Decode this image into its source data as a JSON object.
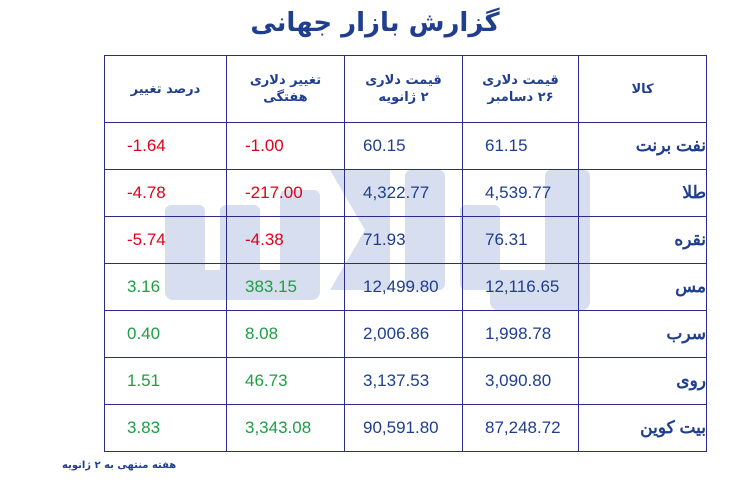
{
  "title": "گزارش بازار جهانی",
  "headers": {
    "commodity": "کالا",
    "price_dec26_line1": "قیمت دلاری",
    "price_dec26_line2": "۲۶ دسامبر",
    "price_jan2_line1": "قیمت دلاری",
    "price_jan2_line2": "۲ ژانویه",
    "weekly_change": "تغییر دلاری هفتگی",
    "percent_change": "درصد تغییر"
  },
  "rows": [
    {
      "name": "نفت برنت",
      "price_dec26": "61.15",
      "price_jan2": "60.15",
      "change": "-1.00",
      "pct": "-1.64"
    },
    {
      "name": "طلا",
      "price_dec26": "4,539.77",
      "price_jan2": "4,322.77",
      "change": "-217.00",
      "pct": "-4.78"
    },
    {
      "name": "نقره",
      "price_dec26": "76.31",
      "price_jan2": "71.93",
      "change": "-4.38",
      "pct": "-5.74"
    },
    {
      "name": "مس",
      "price_dec26": "12,116.65",
      "price_jan2": "12,499.80",
      "change": "383.15",
      "pct": "3.16"
    },
    {
      "name": "سرب",
      "price_dec26": "1,998.78",
      "price_jan2": "2,006.86",
      "change": "8.08",
      "pct": "0.40"
    },
    {
      "name": "روی",
      "price_dec26": "3,090.80",
      "price_jan2": "3,137.53",
      "change": "46.73",
      "pct": "1.51"
    },
    {
      "name": "بیت کوین",
      "price_dec26": "87,248.72",
      "price_jan2": "90,591.80",
      "change": "3,343.08",
      "pct": "3.83"
    }
  ],
  "footnote": "هفته منتهی به ۲ ژانویه",
  "colors": {
    "title": "#1f3e8f",
    "border": "#2b2b8a",
    "negative": "#e0001b",
    "positive": "#1e9e45",
    "watermark": "#c9d3ea"
  },
  "watermark_text": "یادداشت"
}
